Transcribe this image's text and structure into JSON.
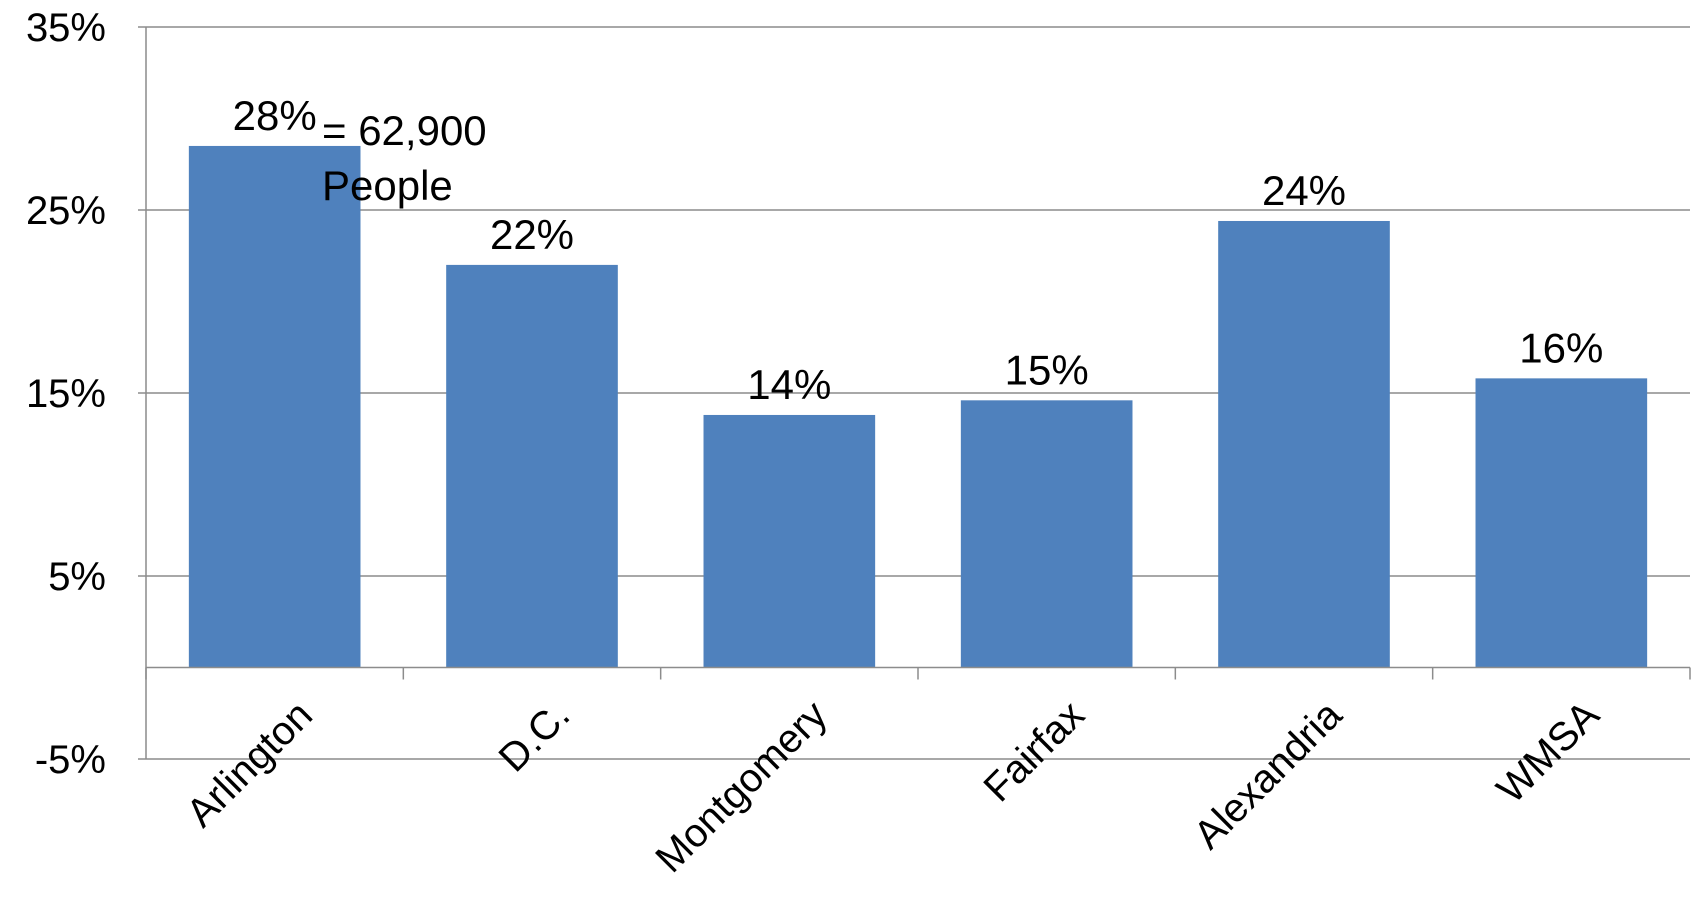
{
  "chart_data": {
    "type": "bar",
    "categories": [
      "Arlington",
      "D.C.",
      "Montgomery",
      "Fairfax",
      "Alexandria",
      "WMSA"
    ],
    "values": [
      28.5,
      22,
      13.8,
      14.6,
      24.4,
      15.8
    ],
    "data_labels": [
      "28%",
      "22%",
      "14%",
      "15%",
      "24%",
      "16%"
    ],
    "ylim": [
      -5,
      35
    ],
    "yticks": [
      -5,
      5,
      15,
      25,
      35
    ],
    "ytick_labels": [
      "-5%",
      "5%",
      "15%",
      "25%",
      "35%"
    ],
    "annotation": {
      "line1": "= 62,900",
      "line2": "People"
    },
    "bar_color": "#4F81BD",
    "grid": true
  }
}
